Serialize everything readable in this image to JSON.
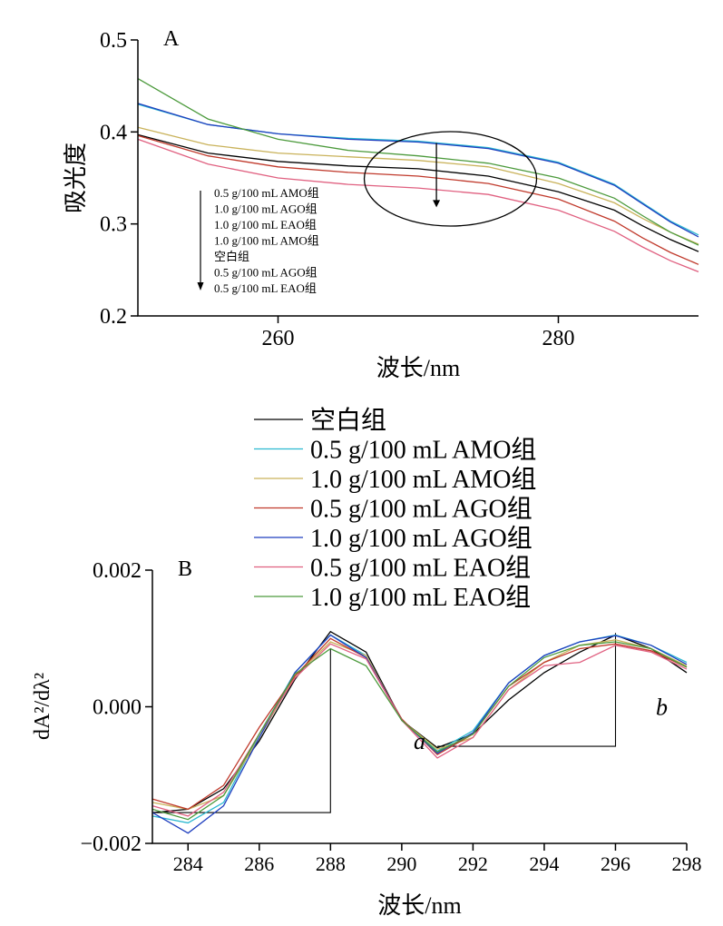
{
  "chart_data": [
    {
      "type": "line",
      "panel_label": "A",
      "xlabel": "波长/nm",
      "ylabel": "吸光度",
      "xlim": [
        250,
        290
      ],
      "ylim": [
        0.2,
        0.5
      ],
      "x_ticks": [
        260,
        280
      ],
      "y_ticks": [
        0.2,
        0.3,
        0.4,
        0.5
      ],
      "y_tick_labels": [
        "0.2",
        "0.3",
        "0.4",
        "0.5"
      ],
      "grid": false,
      "annotation": {
        "type": "ellipse-with-arrow",
        "order_labels": [
          "0.5 g/100 mL AMO组",
          "1.0 g/100 mL AGO组",
          "1.0 g/100 mL EAO组",
          "1.0 g/100 mL AMO组",
          "空白组",
          "0.5 g/100 mL AGO组",
          "0.5 g/100 mL EAO组"
        ]
      },
      "series": [
        {
          "name": "空白组",
          "color": "#000000",
          "x": [
            250,
            255,
            260,
            265,
            270,
            275,
            280,
            284,
            286,
            288,
            290
          ],
          "y": [
            0.397,
            0.377,
            0.368,
            0.363,
            0.36,
            0.352,
            0.335,
            0.315,
            0.298,
            0.283,
            0.27
          ]
        },
        {
          "name": "0.5 g/100 mL AMO组",
          "color": "#2ab8d0",
          "x": [
            250,
            255,
            260,
            265,
            270,
            275,
            280,
            284,
            286,
            288,
            290
          ],
          "y": [
            0.43,
            0.408,
            0.398,
            0.393,
            0.39,
            0.383,
            0.367,
            0.343,
            0.323,
            0.303,
            0.288
          ]
        },
        {
          "name": "1.0 g/100 mL AMO组",
          "color": "#c9b25a",
          "x": [
            250,
            255,
            260,
            265,
            270,
            275,
            280,
            284,
            286,
            288,
            290
          ],
          "y": [
            0.405,
            0.386,
            0.377,
            0.373,
            0.369,
            0.362,
            0.344,
            0.323,
            0.306,
            0.291,
            0.278
          ]
        },
        {
          "name": "0.5 g/100 mL AGO组",
          "color": "#c0392b",
          "x": [
            250,
            255,
            260,
            265,
            270,
            275,
            280,
            284,
            286,
            288,
            290
          ],
          "y": [
            0.396,
            0.374,
            0.362,
            0.356,
            0.352,
            0.344,
            0.327,
            0.303,
            0.285,
            0.269,
            0.256
          ]
        },
        {
          "name": "1.0 g/100 mL AGO组",
          "color": "#1f3fbf",
          "x": [
            250,
            255,
            260,
            265,
            270,
            275,
            280,
            284,
            286,
            288,
            290
          ],
          "y": [
            0.431,
            0.408,
            0.398,
            0.392,
            0.389,
            0.382,
            0.366,
            0.342,
            0.322,
            0.302,
            0.286
          ]
        },
        {
          "name": "0.5 g/100 mL EAO组",
          "color": "#e06080",
          "x": [
            250,
            255,
            260,
            265,
            270,
            275,
            280,
            284,
            286,
            288,
            290
          ],
          "y": [
            0.392,
            0.365,
            0.35,
            0.343,
            0.339,
            0.332,
            0.315,
            0.292,
            0.275,
            0.26,
            0.248
          ]
        },
        {
          "name": "1.0 g/100 mL EAO组",
          "color": "#4c9a3c",
          "x": [
            250,
            255,
            260,
            265,
            270,
            275,
            280,
            284,
            286,
            288,
            290
          ],
          "y": [
            0.458,
            0.414,
            0.392,
            0.38,
            0.374,
            0.366,
            0.35,
            0.328,
            0.309,
            0.291,
            0.277
          ]
        }
      ]
    },
    {
      "type": "line",
      "panel_label": "B",
      "xlabel": "波长/nm",
      "ylabel": "dA²/dλ²",
      "xlim": [
        283,
        298
      ],
      "ylim": [
        -0.002,
        0.002
      ],
      "x_ticks": [
        284,
        286,
        288,
        290,
        292,
        294,
        296,
        298
      ],
      "y_ticks": [
        -0.002,
        0.0,
        0.002
      ],
      "y_tick_labels": [
        "−0.002",
        "0.000",
        "0.002"
      ],
      "grid": false,
      "legend": {
        "placement": "above-panel"
      },
      "annotations": [
        {
          "label": "a",
          "x": 290.5,
          "y": -0.0005
        },
        {
          "label": "b",
          "x": 297.3,
          "y": 0.0
        }
      ],
      "reference_lines": [
        {
          "name": "a",
          "points": [
            [
              283,
              -0.00155
            ],
            [
              288,
              -0.00155
            ],
            [
              288,
              0.00085
            ]
          ]
        },
        {
          "name": "b",
          "points": [
            [
              291,
              -0.00058
            ],
            [
              296,
              -0.00058
            ],
            [
              296,
              0.00108
            ]
          ]
        }
      ],
      "x": [
        283,
        284,
        285,
        286,
        287,
        288,
        289,
        290,
        291,
        292,
        293,
        294,
        295,
        296,
        297,
        298
      ],
      "series": [
        {
          "name": "空白组",
          "color": "#000000",
          "y": [
            -0.00155,
            -0.0015,
            -0.0012,
            -0.0005,
            0.0004,
            0.0011,
            0.0008,
            -0.0002,
            -0.0006,
            -0.0004,
            0.0001,
            0.0005,
            0.0008,
            0.00105,
            0.00085,
            0.0005
          ]
        },
        {
          "name": "0.5 g/100 mL AMO组",
          "color": "#2ab8d0",
          "y": [
            -0.0016,
            -0.0017,
            -0.0014,
            -0.0004,
            0.0005,
            0.00105,
            0.00075,
            -0.0002,
            -0.00065,
            -0.00035,
            0.00035,
            0.00075,
            0.00095,
            0.00105,
            0.0009,
            0.00065
          ]
        },
        {
          "name": "1.0 g/100 mL AMO组",
          "color": "#c9b25a",
          "y": [
            -0.0014,
            -0.0015,
            -0.0013,
            -0.00045,
            0.00045,
            0.00095,
            0.00075,
            -0.0002,
            -0.00062,
            -0.00045,
            0.00025,
            0.00065,
            0.0009,
            0.00098,
            0.00085,
            0.0006
          ]
        },
        {
          "name": "0.5 g/100 mL AGO组",
          "color": "#c0392b",
          "y": [
            -0.00135,
            -0.0015,
            -0.00115,
            -0.0003,
            0.00045,
            0.001,
            0.00072,
            -0.00018,
            -0.0007,
            -0.0004,
            0.0003,
            0.00065,
            0.00085,
            0.00092,
            0.00082,
            0.00058
          ]
        },
        {
          "name": "1.0 g/100 mL AGO组",
          "color": "#1f3fbf",
          "y": [
            -0.00155,
            -0.00185,
            -0.00145,
            -0.00045,
            0.0005,
            0.00105,
            0.00072,
            -0.0002,
            -0.00068,
            -0.00038,
            0.00035,
            0.00075,
            0.00095,
            0.00104,
            0.0009,
            0.00062
          ]
        },
        {
          "name": "0.5 g/100 mL EAO组",
          "color": "#e06080",
          "y": [
            -0.00145,
            -0.0016,
            -0.00125,
            -0.0004,
            0.00042,
            0.00092,
            0.0007,
            -0.0002,
            -0.00075,
            -0.00045,
            0.00025,
            0.0006,
            0.00065,
            0.0009,
            0.0008,
            0.00055
          ]
        },
        {
          "name": "1.0 g/100 mL EAO组",
          "color": "#4c9a3c",
          "y": [
            -0.0015,
            -0.00165,
            -0.0013,
            -0.0004,
            0.00048,
            0.00085,
            0.0006,
            -0.0002,
            -0.00066,
            -0.0004,
            0.0003,
            0.00072,
            0.0009,
            0.00095,
            0.00085,
            0.00058
          ]
        }
      ]
    }
  ]
}
